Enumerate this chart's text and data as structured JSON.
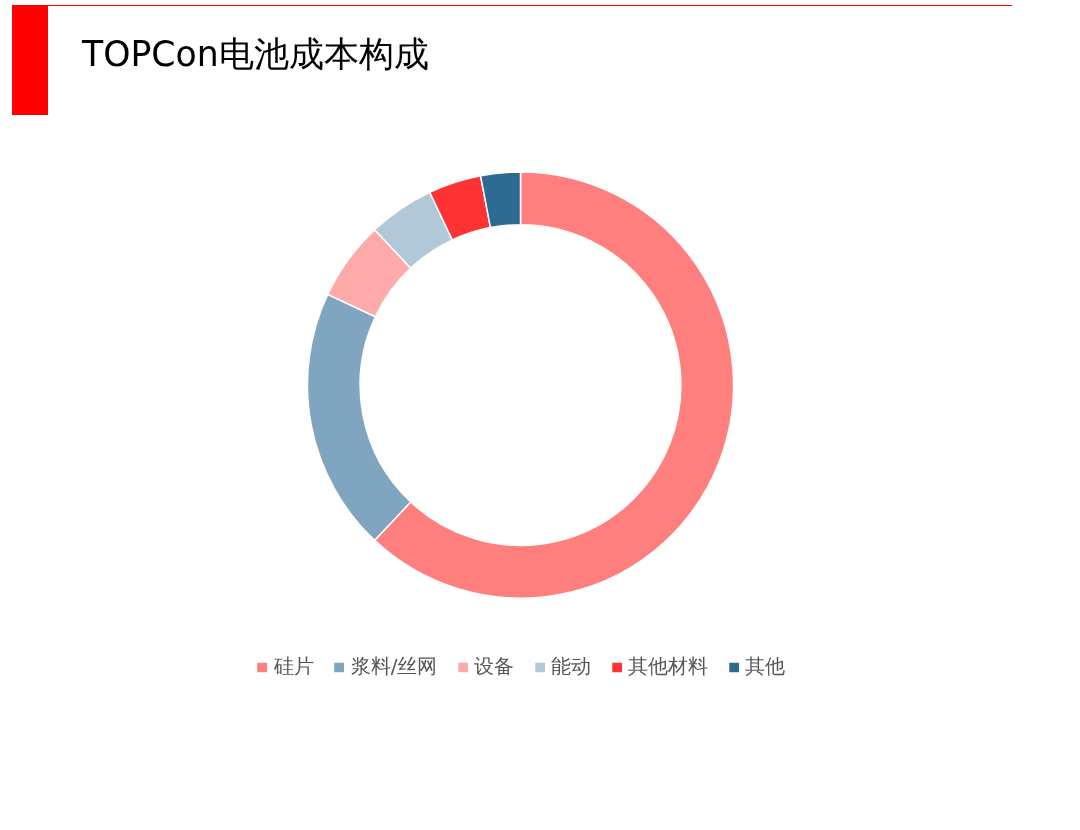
{
  "chart_data": {
    "type": "donut",
    "title": "TOPCon电池成本构成",
    "categories": [
      "硅片",
      "浆料/丝网",
      "设备",
      "能动",
      "其他材料",
      "其他"
    ],
    "values": [
      62,
      20,
      6,
      5,
      4,
      3
    ],
    "colors": [
      "#ff7f7f",
      "#7fa5c0",
      "#ffaaaa",
      "#b0c8d8",
      "#ff3333",
      "#2e6b90"
    ],
    "legend": "bottom"
  }
}
